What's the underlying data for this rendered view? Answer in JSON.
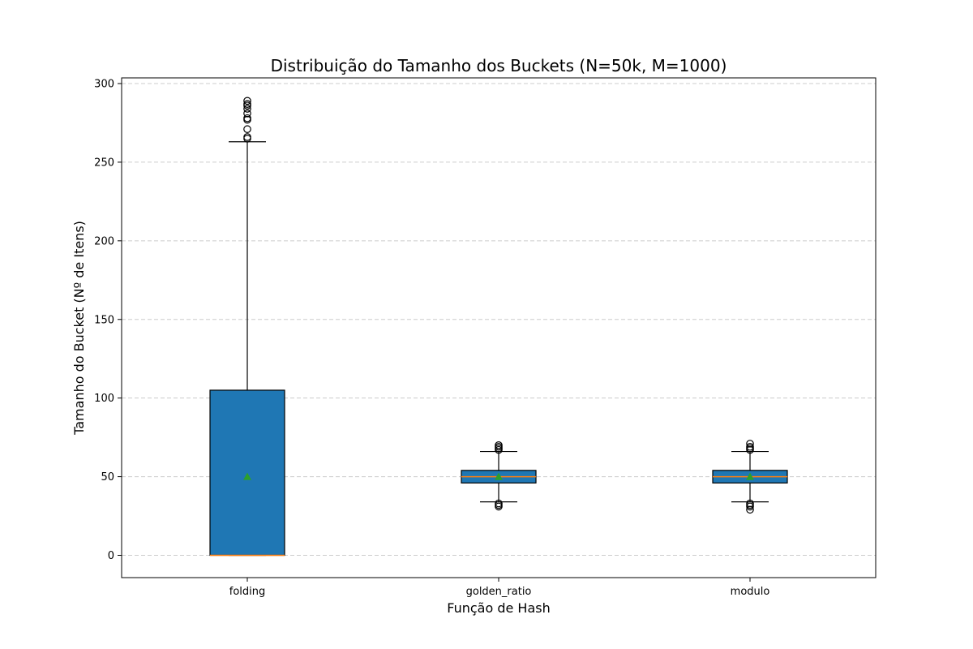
{
  "chart_data": {
    "type": "box",
    "title": "Distribuição do Tamanho dos Buckets (N=50k, M=1000)",
    "xlabel": "Função de Hash",
    "ylabel": "Tamanho do Bucket (Nº de Itens)",
    "ylim": [
      -14,
      304
    ],
    "yticks": [
      0,
      50,
      100,
      150,
      200,
      250,
      300
    ],
    "grid": "y-dashed",
    "categories": [
      "folding",
      "golden_ratio",
      "modulo"
    ],
    "boxes": [
      {
        "name": "folding",
        "whisker_low": 0,
        "q1": 0,
        "median": 0,
        "q3": 105,
        "whisker_high": 263,
        "mean": 50,
        "outliers": [
          265,
          266,
          271,
          277,
          278,
          281,
          284,
          286,
          287,
          289
        ]
      },
      {
        "name": "golden_ratio",
        "whisker_low": 34,
        "q1": 46,
        "median": 50,
        "q3": 54,
        "whisker_high": 66,
        "mean": 50,
        "outliers": [
          31,
          32,
          33,
          67,
          68,
          69,
          70
        ]
      },
      {
        "name": "modulo",
        "whisker_low": 34,
        "q1": 46,
        "median": 50,
        "q3": 54,
        "whisker_high": 66,
        "mean": 50,
        "outliers": [
          29,
          31,
          32,
          33,
          67,
          68,
          69,
          71
        ]
      }
    ],
    "colors": {
      "box_fill": "#1f77b4",
      "median": "#ff7f0e",
      "mean": "#2ca02c",
      "edge": "#000000",
      "grid": "#cccccc"
    }
  }
}
